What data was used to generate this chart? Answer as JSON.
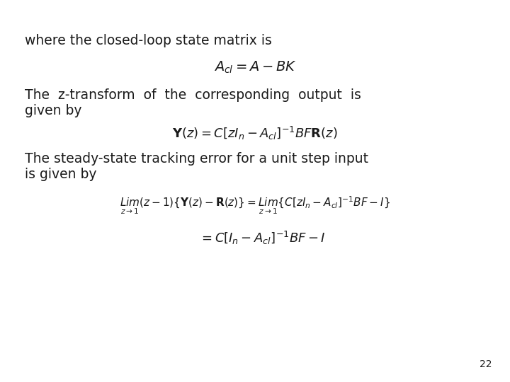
{
  "background_color": "#ffffff",
  "page_number": "22",
  "text1": "where the closed-loop state matrix is",
  "eq1": "$A_{cl} = A - BK$",
  "text2_line1": "The  z-transform  of  the  corresponding  output  is",
  "text2_line2": "given by",
  "eq2": "$\\mathbf{Y}(z) = C\\left[zI_n - A_{cl}\\right]^{-1}BF\\mathbf{R}(z)$",
  "text3_line1": "The steady-state tracking error for a unit step input",
  "text3_line2": "is given by",
  "eq3a": "$\\underset{z \\to 1}{\\mathit{Lim}}(z-1)\\{\\mathbf{Y}(z) - \\mathbf{R}(z)\\} = \\underset{z \\to 1}{\\mathit{Lim}}\\left\\{C\\left[zI_n - A_{cl}\\right]^{-1}BF - I\\right\\}$",
  "eq3b": "$= C\\left[I_n - A_{cl}\\right]^{-1}BF - I$",
  "text_color": "#1a1a1a",
  "font_size_text": 13.5,
  "font_size_eq1": 14,
  "font_size_eq2": 13,
  "font_size_eq3a": 11,
  "font_size_eq3b": 13,
  "font_size_page": 10
}
